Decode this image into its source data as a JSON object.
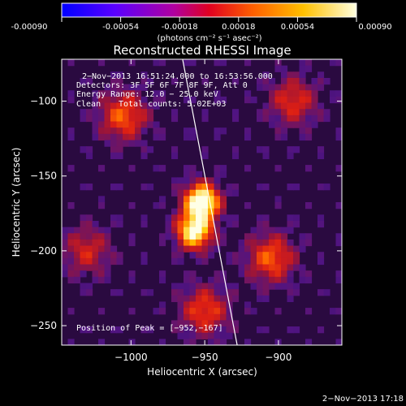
{
  "colorbar": {
    "ticks": [
      "-0.00090",
      "-0.00054",
      "-0.00018",
      "0.00018",
      "0.00054",
      "0.00090"
    ],
    "unit_label": "(photons cm⁻² s⁻¹ asec⁻²)",
    "range": [
      -0.0009,
      0.0009
    ],
    "colors": [
      "#0000ff",
      "#5a00ff",
      "#b000a0",
      "#e00020",
      "#ff6000",
      "#ffc000",
      "#ffffe0"
    ]
  },
  "chart_data": {
    "type": "heatmap",
    "title": "Reconstructed RHESSI Image",
    "xlabel": "Heliocentric X (arcsec)",
    "ylabel": "Heliocentric Y (arcsec)",
    "xticks": [
      "−1000",
      "−950",
      "−900"
    ],
    "yticks": [
      "−100",
      "−150",
      "−200",
      "−250"
    ],
    "xtick_values": [
      -1000,
      -950,
      -900
    ],
    "ytick_values": [
      -100,
      -150,
      -200,
      -250
    ],
    "xlim": [
      -1047,
      -857
    ],
    "ylim": [
      -263,
      -72
    ],
    "peak": {
      "x": -952,
      "y": -167
    },
    "limb_line": [
      [
        -965,
        -72
      ],
      [
        -928,
        -263
      ]
    ],
    "annotations": [
      "2−Nov−2013 16:51:24.000 to 16:53:56.000",
      "Detectors: 3F 5F 6F 7F 8F 9F, Att 0",
      "Energy Range: 12.0 − 25.0 keV",
      "Clean",
      "Total counts: 5.02E+03"
    ],
    "peak_label": "Position of Peak = [−952,−167]",
    "bright_sources": [
      {
        "x": -952,
        "y": -167,
        "intensity": 1.0
      },
      {
        "x": -957,
        "y": -187,
        "intensity": 0.9
      },
      {
        "x": -1005,
        "y": -110,
        "intensity": 0.5
      },
      {
        "x": -905,
        "y": -205,
        "intensity": 0.5
      },
      {
        "x": -950,
        "y": -240,
        "intensity": 0.45
      },
      {
        "x": -890,
        "y": -100,
        "intensity": 0.4
      },
      {
        "x": -1030,
        "y": -200,
        "intensity": 0.35
      }
    ]
  },
  "footer": {
    "timestamp": "2−Nov−2013 17:18"
  }
}
